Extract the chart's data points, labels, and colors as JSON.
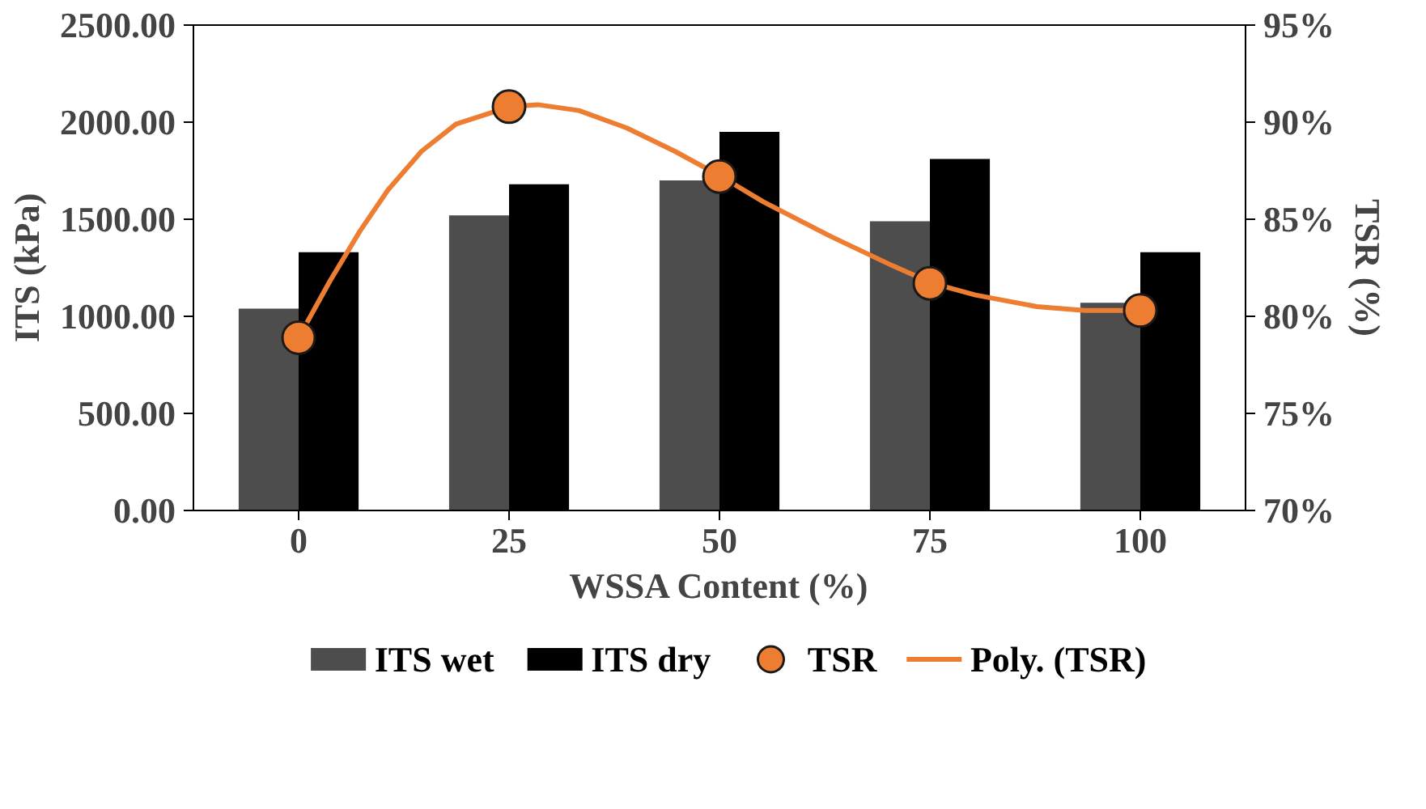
{
  "chart_data": {
    "type": "bar",
    "xlabel": "WSSA Content (%)",
    "ylabel": "ITS (kPa)",
    "y2label": "TSR (%)",
    "x": [
      0,
      25,
      50,
      75,
      100
    ],
    "xlim": [
      -12.5,
      112.5
    ],
    "xticks": [
      0,
      25,
      50,
      75,
      100
    ],
    "ylim": [
      0,
      2500
    ],
    "yticks": [
      {
        "value": 0,
        "label": "0.00"
      },
      {
        "value": 500,
        "label": "500.00"
      },
      {
        "value": 1000,
        "label": "1000.00"
      },
      {
        "value": 1500,
        "label": "1500.00"
      },
      {
        "value": 2000,
        "label": "2000.00"
      },
      {
        "value": 2500,
        "label": "2500.00"
      }
    ],
    "y2lim": [
      70,
      95
    ],
    "y2ticks": [
      {
        "value": 70,
        "label": "70%"
      },
      {
        "value": 75,
        "label": "75%"
      },
      {
        "value": 80,
        "label": "80%"
      },
      {
        "value": 85,
        "label": "85%"
      },
      {
        "value": 90,
        "label": "90%"
      },
      {
        "value": 95,
        "label": "95%"
      }
    ],
    "series": [
      {
        "name": "ITS wet",
        "color": "#4d4d4d",
        "values": [
          1040,
          1520,
          1700,
          1490,
          1070
        ]
      },
      {
        "name": "ITS dry",
        "color": "#000000",
        "values": [
          1330,
          1680,
          1950,
          1810,
          1330
        ]
      },
      {
        "name": "TSR",
        "type": "scatter",
        "axis": "y2",
        "marker": "circle",
        "color": "#ed7d31",
        "values": [
          78.9,
          90.8,
          87.2,
          81.7,
          80.3
        ]
      },
      {
        "name": "Poly. (TSR)",
        "type": "line",
        "axis": "y2",
        "color": "#ed7d31",
        "x": [
          0,
          3.7,
          7.3,
          10.6,
          14.6,
          18.7,
          25.1,
          28.4,
          33.3,
          39,
          44.7,
          50.2,
          55.2,
          63.3,
          70.6,
          75.3,
          80.4,
          87.7,
          93.4,
          99.9
        ],
        "values": [
          78.9,
          81.8,
          84.4,
          86.5,
          88.5,
          89.9,
          90.8,
          90.9,
          90.6,
          89.7,
          88.5,
          87.2,
          85.9,
          84.1,
          82.6,
          81.7,
          81.1,
          80.5,
          80.3,
          80.3
        ]
      }
    ],
    "grid": false,
    "legend": "bottom"
  }
}
